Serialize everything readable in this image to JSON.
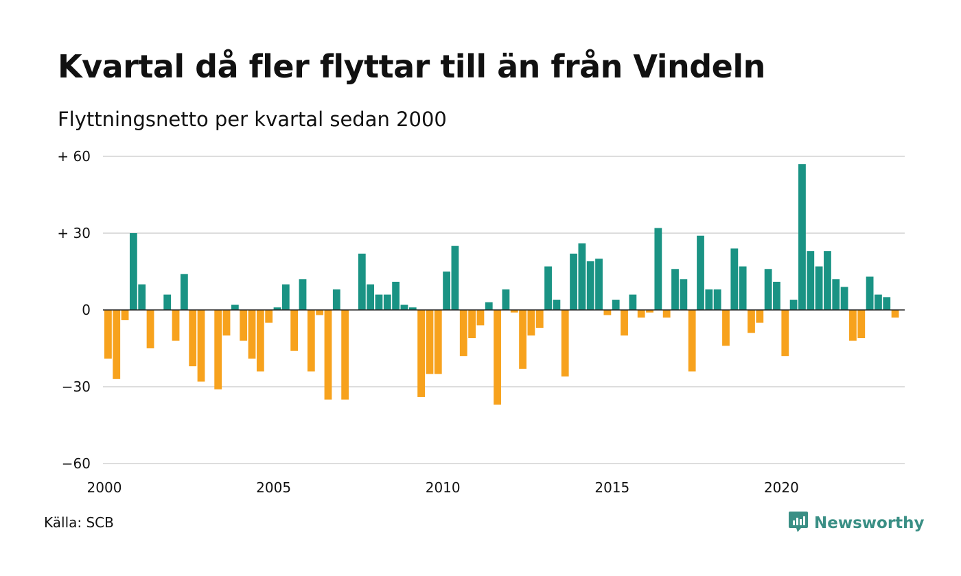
{
  "title": "Kvartal då fler flyttar till än från Vindeln",
  "subtitle": "Flyttningsnetto per kvartal sedan 2000",
  "source": "Källa: SCB",
  "brand": {
    "name": "Newsworthy",
    "icon": "newsworthy-logo-icon"
  },
  "colors": {
    "positive": "#1a9384",
    "negative": "#f7a21d",
    "grid": "#dddddd",
    "text": "#111111",
    "brand": "#3a8f85"
  },
  "chart_data": {
    "type": "bar",
    "title": "",
    "xlabel": "",
    "ylabel": "",
    "ylim": [
      -60,
      60
    ],
    "y_ticks": [
      {
        "value": 60,
        "label": "+ 60"
      },
      {
        "value": 30,
        "label": "+ 30"
      },
      {
        "value": 0,
        "label": "0"
      },
      {
        "value": -30,
        "label": "−30"
      },
      {
        "value": -60,
        "label": "−60"
      }
    ],
    "x_ticks": [
      "2000",
      "2005",
      "2010",
      "2015",
      "2020"
    ],
    "grid": true,
    "legend": "none",
    "start_quarter": "2000 Q1",
    "categories": [
      "2000 Q1",
      "2000 Q2",
      "2000 Q3",
      "2000 Q4",
      "2001 Q1",
      "2001 Q2",
      "2001 Q3",
      "2001 Q4",
      "2002 Q1",
      "2002 Q2",
      "2002 Q3",
      "2002 Q4",
      "2003 Q1",
      "2003 Q2",
      "2003 Q3",
      "2003 Q4",
      "2004 Q1",
      "2004 Q2",
      "2004 Q3",
      "2004 Q4",
      "2005 Q1",
      "2005 Q2",
      "2005 Q3",
      "2005 Q4",
      "2006 Q1",
      "2006 Q2",
      "2006 Q3",
      "2006 Q4",
      "2007 Q1",
      "2007 Q2",
      "2007 Q3",
      "2007 Q4",
      "2008 Q1",
      "2008 Q2",
      "2008 Q3",
      "2008 Q4",
      "2009 Q1",
      "2009 Q2",
      "2009 Q3",
      "2009 Q4",
      "2010 Q1",
      "2010 Q2",
      "2010 Q3",
      "2010 Q4",
      "2011 Q1",
      "2011 Q2",
      "2011 Q3",
      "2011 Q4",
      "2012 Q1",
      "2012 Q2",
      "2012 Q3",
      "2012 Q4",
      "2013 Q1",
      "2013 Q2",
      "2013 Q3",
      "2013 Q4",
      "2014 Q1",
      "2014 Q2",
      "2014 Q3",
      "2014 Q4",
      "2015 Q1",
      "2015 Q2",
      "2015 Q3",
      "2015 Q4",
      "2016 Q1",
      "2016 Q2",
      "2016 Q3",
      "2016 Q4",
      "2017 Q1",
      "2017 Q2",
      "2017 Q3",
      "2017 Q4",
      "2018 Q1",
      "2018 Q2",
      "2018 Q3",
      "2018 Q4",
      "2019 Q1",
      "2019 Q2",
      "2019 Q3",
      "2019 Q4",
      "2020 Q1",
      "2020 Q2",
      "2020 Q3",
      "2020 Q4",
      "2021 Q1",
      "2021 Q2",
      "2021 Q3",
      "2021 Q4",
      "2022 Q1",
      "2022 Q2",
      "2022 Q3",
      "2022 Q4",
      "2023 Q1",
      "2023 Q2",
      "2023 Q3",
      "2023 Q4"
    ],
    "values": [
      -19,
      -27,
      -4,
      30,
      10,
      -15,
      0,
      6,
      -12,
      14,
      -22,
      -28,
      0,
      -31,
      -10,
      2,
      -12,
      -19,
      -24,
      -5,
      1,
      10,
      -16,
      12,
      -24,
      -2,
      -35,
      8,
      -35,
      0,
      22,
      10,
      6,
      6,
      11,
      2,
      1,
      -34,
      -25,
      -25,
      15,
      25,
      -18,
      -11,
      -6,
      3,
      -37,
      8,
      -1,
      -23,
      -10,
      -7,
      17,
      4,
      -26,
      22,
      26,
      19,
      20,
      -2,
      4,
      -10,
      6,
      -3,
      -1,
      32,
      -3,
      16,
      12,
      -24,
      29,
      8,
      8,
      -14,
      24,
      17,
      -9,
      -5,
      16,
      11,
      -18,
      4,
      57,
      23,
      17,
      23,
      12,
      9,
      -12,
      -11,
      13,
      6,
      5,
      -3,
      0,
      0
    ]
  }
}
